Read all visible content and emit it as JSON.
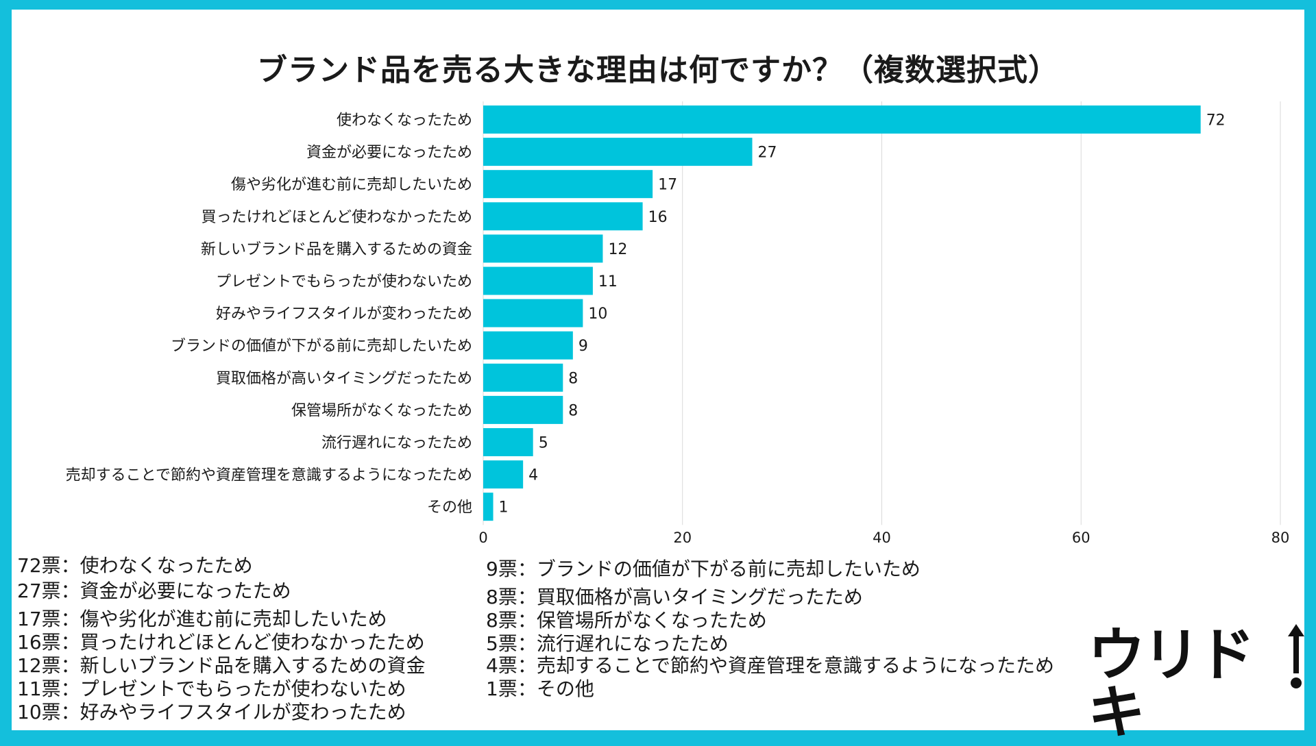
{
  "colors": {
    "frame": "#14bfdc",
    "bar": "#00c4dc",
    "grid": "#d9d9d9",
    "text": "#1a1a1a"
  },
  "chart_data": {
    "type": "bar",
    "orientation": "horizontal",
    "title": "ブランド品を売る大きな理由は何ですか？（複数選択式）",
    "categories": [
      "使わなくなったため",
      "資金が必要になったため",
      "傷や劣化が進む前に売却したいため",
      "買ったけれどほとんど使わなかったため",
      "新しいブランド品を購入するための資金",
      "プレゼントでもらったが使わないため",
      "好みやライフスタイルが変わったため",
      "ブランドの価値が下がる前に売却したいため",
      "買取価格が高いタイミングだったため",
      "保管場所がなくなったため",
      "流行遅れになったため",
      "売却することで節約や資産管理を意識するようになったため",
      "その他"
    ],
    "values": [
      72,
      27,
      17,
      16,
      12,
      11,
      10,
      9,
      8,
      8,
      5,
      4,
      1
    ],
    "xlim": [
      0,
      80
    ],
    "xticks": [
      0,
      20,
      40,
      60,
      80
    ],
    "grid": true
  },
  "legend": {
    "left": [
      "72票：使わなくなったため",
      "27票：資金が必要になったため",
      "17票：傷や劣化が進む前に売却したいため",
      "16票：買ったけれどほとんど使わなかったため",
      "12票：新しいブランド品を購入するための資金",
      "11票：プレゼントでもらったが使わないため",
      "10票：好みやライフスタイルが変わったため"
    ],
    "right": [
      "9票：ブランドの価値が下がる前に売却したいため",
      "8票：買取価格が高いタイミングだったため",
      "8票：保管場所がなくなったため",
      "5票：流行遅れになったため",
      "4票：売却することで節約や資産管理を意識するようになったため",
      "1票：その他"
    ]
  },
  "logo": {
    "text": "ウリドキ"
  }
}
